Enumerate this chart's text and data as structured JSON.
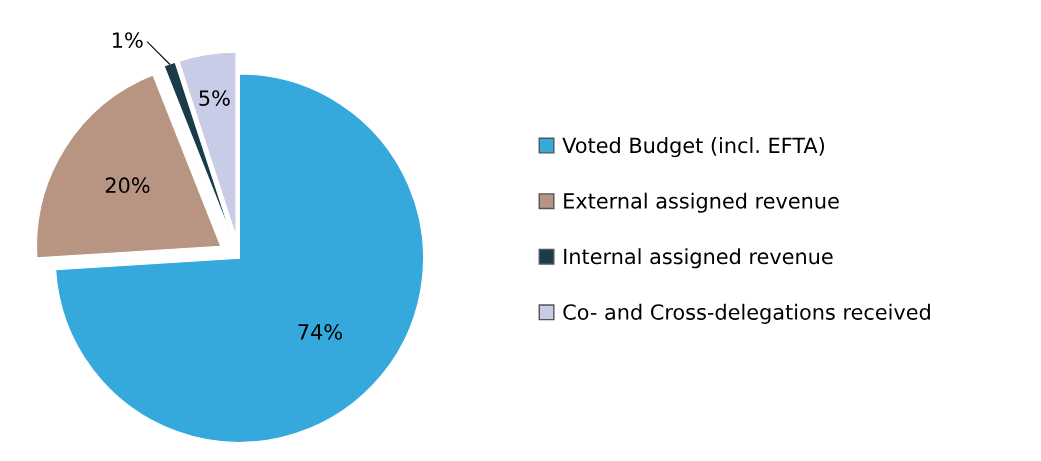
{
  "chart_data": {
    "type": "pie",
    "categories": [
      "Voted Budget (incl. EFTA)",
      "External assigned revenue",
      "Internal assigned revenue",
      "Co- and Cross-delegations received"
    ],
    "values": [
      74,
      20,
      1,
      5
    ],
    "colors": [
      "#35a8dc",
      "#b89483",
      "#1a3c4a",
      "#c8cce6"
    ],
    "value_labels": [
      "74%",
      "20%",
      "1%",
      "5%"
    ],
    "legend": "right"
  }
}
